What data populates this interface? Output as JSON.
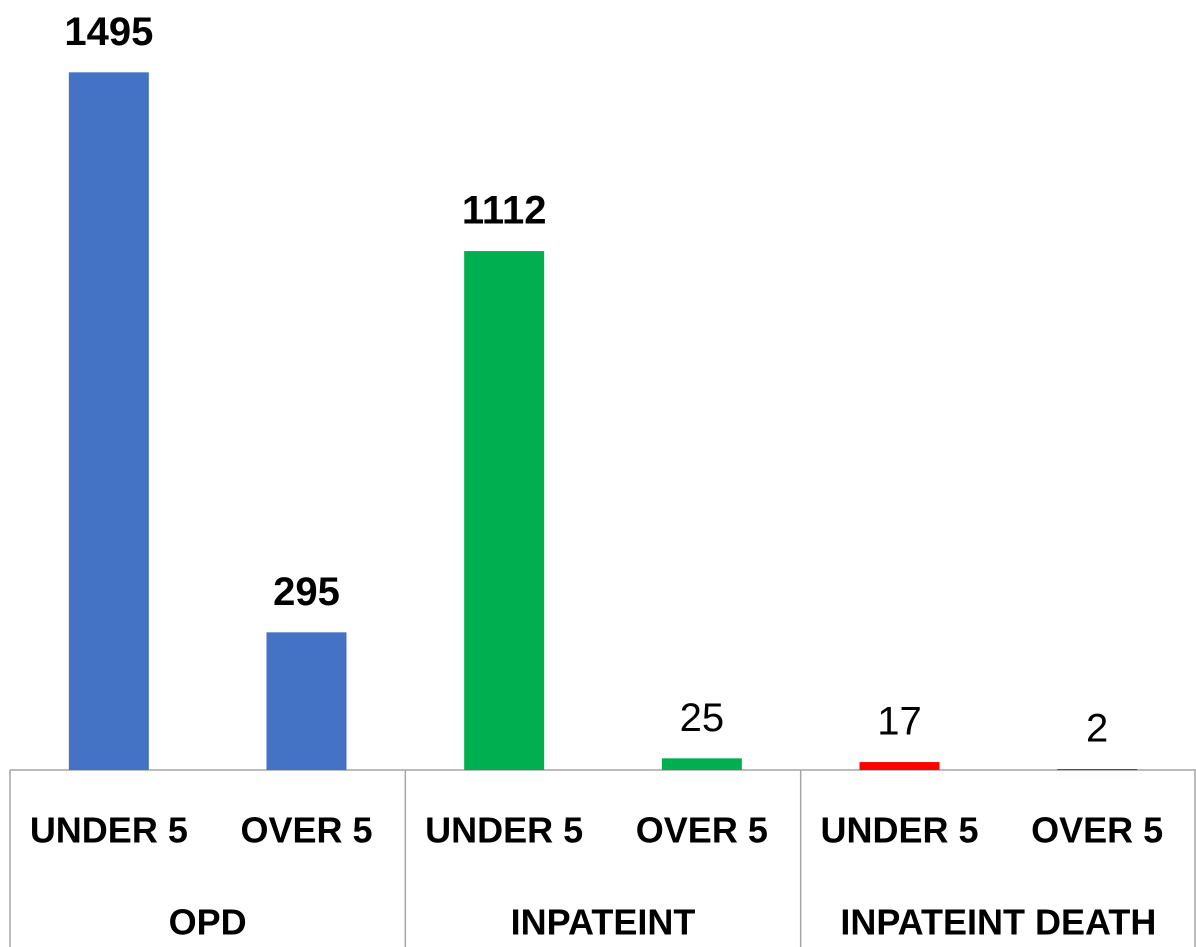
{
  "chart_data": {
    "type": "bar",
    "groups": [
      {
        "name": "OPD",
        "categories": [
          "UNDER 5",
          "OVER 5"
        ],
        "values": [
          1495,
          295
        ],
        "color": "#4472c4",
        "bold_value_labels": true
      },
      {
        "name": "INPATEINT",
        "categories": [
          "UNDER 5",
          "OVER 5"
        ],
        "values": [
          1112,
          25
        ],
        "color": "#00b050",
        "bold_value_labels": [
          true,
          false
        ]
      },
      {
        "name": "INPATEINT DEATH",
        "categories": [
          "UNDER 5",
          "OVER 5"
        ],
        "values": [
          17,
          2
        ],
        "color": "#ff0000",
        "bold_value_labels": false
      }
    ],
    "ylim": [
      0,
      1500
    ]
  }
}
